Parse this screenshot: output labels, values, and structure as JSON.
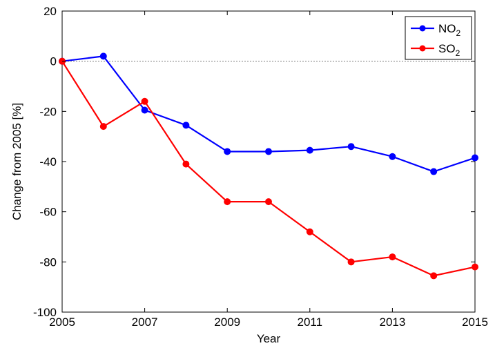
{
  "chart_data": {
    "type": "line",
    "title": "",
    "xlabel": "Year",
    "ylabel": "Change from 2005 [%]",
    "xlim": [
      2005,
      2015
    ],
    "ylim": [
      -100,
      20
    ],
    "xticks": [
      2005,
      2007,
      2009,
      2011,
      2013,
      2015
    ],
    "yticks": [
      20,
      0,
      -20,
      -40,
      -60,
      -80,
      -100
    ],
    "grid": false,
    "zero_reference_line": true,
    "legend_position": "top-right",
    "x": [
      2005,
      2006,
      2007,
      2008,
      2009,
      2010,
      2011,
      2012,
      2013,
      2014,
      2015
    ],
    "series": [
      {
        "name": "NO2",
        "label_base": "NO",
        "label_sub": "2",
        "color": "#0000ff",
        "values": [
          0,
          2,
          -19.5,
          -25.5,
          -36,
          -36,
          -35.5,
          -34,
          -38,
          -44,
          -38.5
        ]
      },
      {
        "name": "SO2",
        "label_base": "SO",
        "label_sub": "2",
        "color": "#ff0000",
        "values": [
          0,
          -26,
          -16,
          -41,
          -56,
          -56,
          -68,
          -80,
          -78,
          -85.5,
          -82
        ]
      }
    ]
  }
}
